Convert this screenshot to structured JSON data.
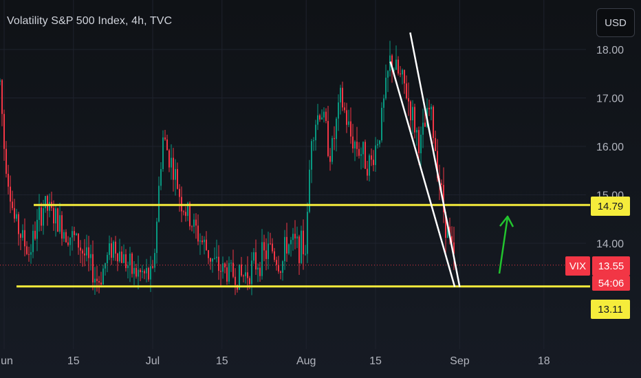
{
  "header": {
    "title": "Volatility S&P 500 Index, 4h, TVC",
    "currency_button": "USD"
  },
  "colors": {
    "up": "#089981",
    "down": "#f23645",
    "level_line": "#f5ec3b",
    "trend_line": "#ffffff",
    "arrow": "#22c42e",
    "last_price_line": "#f23645"
  },
  "price_scale": {
    "labels": [
      "18.00",
      "17.00",
      "16.00",
      "15.00",
      "14.00"
    ]
  },
  "level_tags": {
    "upper": "14.79",
    "lower": "13.11"
  },
  "price_tag": {
    "symbol": "VIX",
    "price": "13.55",
    "countdown": "54:06"
  },
  "chart_data": {
    "type": "candlestick",
    "title": "Volatility S&P 500 Index, 4h, TVC",
    "x_tick_labels": [
      "Jun",
      "15",
      "Jul",
      "15",
      "Aug",
      "15",
      "Sep",
      "18"
    ],
    "y_tick_labels": [
      18.0,
      17.0,
      16.0,
      15.0,
      14.0
    ],
    "ylim": [
      12.3,
      18.9
    ],
    "last_price": 13.55,
    "horizontal_levels": [
      14.79,
      13.11
    ],
    "trend_lines": [
      {
        "from": [
          "Aug 18",
          17.75
        ],
        "to": [
          "Aug 31",
          13.1
        ]
      },
      {
        "from": [
          "Aug 22",
          18.35
        ],
        "to": [
          "Sep 1",
          13.1
        ]
      }
    ],
    "annotation": "upward arrow near Sep 1",
    "series_path": [
      {
        "date": "May 31",
        "price": 17.6
      },
      {
        "date": "Jun 1",
        "price": 16.0
      },
      {
        "date": "Jun 3",
        "price": 14.5
      },
      {
        "date": "Jun 6",
        "price": 13.8
      },
      {
        "date": "Jun 9",
        "price": 14.8
      },
      {
        "date": "Jun 13",
        "price": 14.3
      },
      {
        "date": "Jun 16",
        "price": 14.0
      },
      {
        "date": "Jun 20",
        "price": 13.2
      },
      {
        "date": "Jun 23",
        "price": 14.0
      },
      {
        "date": "Jun 27",
        "price": 13.4
      },
      {
        "date": "Jul 1",
        "price": 13.3
      },
      {
        "date": "Jul 3",
        "price": 16.2
      },
      {
        "date": "Jul 5",
        "price": 15.6
      },
      {
        "date": "Jul 7",
        "price": 14.8
      },
      {
        "date": "Jul 10",
        "price": 14.2
      },
      {
        "date": "Jul 14",
        "price": 13.5
      },
      {
        "date": "Jul 19",
        "price": 13.3
      },
      {
        "date": "Jul 25",
        "price": 13.9
      },
      {
        "date": "Jul 27",
        "price": 13.5
      },
      {
        "date": "Jul 28",
        "price": 14.0
      },
      {
        "date": "Aug 1",
        "price": 13.9
      },
      {
        "date": "Aug 2",
        "price": 16.3
      },
      {
        "date": "Aug 4",
        "price": 16.8
      },
      {
        "date": "Aug 6",
        "price": 15.8
      },
      {
        "date": "Aug 8",
        "price": 17.0
      },
      {
        "date": "Aug 10",
        "price": 16.2
      },
      {
        "date": "Aug 14",
        "price": 15.6
      },
      {
        "date": "Aug 16",
        "price": 16.4
      },
      {
        "date": "Aug 18",
        "price": 17.8
      },
      {
        "date": "Aug 21",
        "price": 17.2
      },
      {
        "date": "Aug 24",
        "price": 16.0
      },
      {
        "date": "Aug 26",
        "price": 16.8
      },
      {
        "date": "Aug 29",
        "price": 14.5
      },
      {
        "date": "Aug 31",
        "price": 13.55
      }
    ]
  }
}
